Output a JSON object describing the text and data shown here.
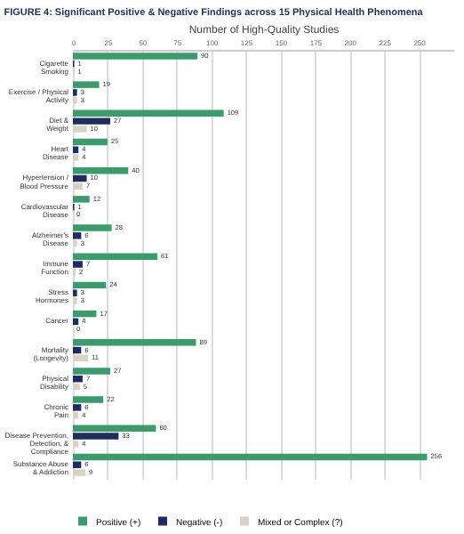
{
  "chart_data": {
    "type": "bar",
    "orientation": "horizontal",
    "title": "FIGURE 4: Significant Positive & Negative Findings across 15 Physical Health Phenomena",
    "xlabel": "Number of High-Quality Studies",
    "categories": [
      "Cigarette\nSmoking",
      "Exercise / Physical\nActivity",
      "Diet &\nWeight",
      "Heart\nDisease",
      "Hypertension /\nBlood Pressure",
      "Cardiovascular\nDisease",
      "Alzheimer's\nDisease",
      "Immune\nFunction",
      "Stress\nHormones",
      "Cancer",
      "Mortality\n(Longevity)",
      "Physical\nDisability",
      "Chronic\nPain",
      "Disease Prevention,\nDetection, &\nCompliance",
      "Substance Abuse\n& Addiction"
    ],
    "series": [
      {
        "name": "Positive (+)",
        "color": "#3d9a6c",
        "values": [
          90,
          19,
          109,
          25,
          40,
          12,
          28,
          61,
          24,
          17,
          89,
          27,
          22,
          60,
          256
        ]
      },
      {
        "name": "Negative (-)",
        "color": "#1e2d5e",
        "values": [
          1,
          3,
          27,
          4,
          10,
          1,
          6,
          7,
          3,
          4,
          6,
          7,
          6,
          33,
          6
        ]
      },
      {
        "name": "Mixed or Complex (?)",
        "color": "#d9d3c5",
        "values": [
          1,
          3,
          10,
          4,
          7,
          0,
          3,
          2,
          3,
          0,
          11,
          5,
          4,
          4,
          9
        ]
      }
    ],
    "xlim": [
      0,
      275
    ],
    "xticks": [
      0,
      25,
      50,
      75,
      100,
      125,
      150,
      175,
      200,
      225,
      250
    ],
    "grid": "x",
    "legend": "bottom",
    "data_labels": true
  }
}
